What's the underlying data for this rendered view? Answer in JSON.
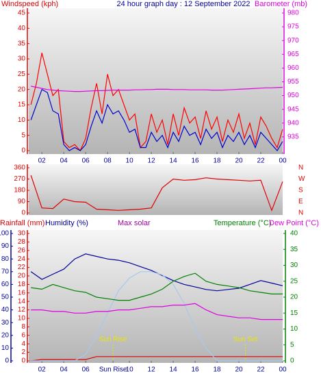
{
  "chart_data": [
    {
      "type": "line",
      "title": "24 hour graph day : 12 September 2022",
      "ylabel": "Windspeed (kph)",
      "y2label": "Barometer (mb)",
      "xlim": [
        0.8,
        24
      ],
      "xticks": [
        {
          "value": 2,
          "label": "02"
        },
        {
          "value": 4,
          "label": "04"
        },
        {
          "value": 6,
          "label": "06"
        },
        {
          "value": 8,
          "label": "08"
        },
        10,
        12,
        14,
        16,
        18,
        20,
        22,
        {
          "value": 24,
          "label": "00"
        }
      ],
      "ylim": [
        0,
        45
      ],
      "yticks": [
        0,
        5,
        10,
        15,
        20,
        25,
        30,
        35,
        40,
        45
      ],
      "y2lim": [
        930,
        980
      ],
      "y2ticks": [
        935,
        940,
        945,
        950,
        955,
        960,
        965,
        970,
        975,
        980
      ],
      "x": [
        1,
        1.5,
        2,
        2.5,
        3,
        3.5,
        4,
        4.5,
        5,
        5.5,
        6,
        6.5,
        7,
        7.5,
        8,
        8.5,
        9,
        9.5,
        10,
        10.5,
        11,
        11.5,
        12,
        12.5,
        13,
        13.5,
        14,
        14.5,
        15,
        15.5,
        16,
        16.5,
        17,
        17.5,
        18,
        18.5,
        19,
        19.5,
        20,
        20.5,
        21,
        21.5,
        22,
        22.5,
        23,
        23.5,
        24
      ],
      "series": [
        {
          "color": "#ff0000",
          "axis": "y",
          "values": [
            15,
            22,
            32,
            25,
            18,
            20,
            3,
            1,
            2,
            0,
            4,
            14,
            22,
            12,
            25,
            18,
            20,
            15,
            10,
            12,
            1,
            3,
            12,
            6,
            10,
            2,
            12,
            5,
            14,
            9,
            11,
            4,
            13,
            7,
            11,
            3,
            10,
            6,
            12,
            4,
            9,
            2,
            11,
            8,
            4,
            1,
            7
          ]
        },
        {
          "color": "#0000cc",
          "axis": "y",
          "values": [
            10,
            15,
            20,
            19,
            13,
            12,
            2,
            0,
            1,
            0,
            2,
            8,
            13,
            9,
            15,
            12,
            13,
            10,
            6,
            7,
            1,
            1,
            6,
            3,
            5,
            1,
            6,
            3,
            8,
            5,
            6,
            2,
            7,
            4,
            6,
            1,
            5,
            3,
            6,
            2,
            5,
            1,
            6,
            4,
            2,
            0,
            3
          ]
        },
        {
          "color": "#e000e0",
          "axis": "y2",
          "values": [
            953.4,
            953.0,
            952.6,
            952.2,
            952.0,
            951.8,
            951.7,
            951.6,
            951.5,
            951.5,
            951.6,
            951.7,
            951.8,
            951.8,
            951.9,
            952.0,
            952.0,
            952.0,
            952.0,
            952.1,
            952.1,
            952.2,
            952.2,
            952.3,
            952.3,
            952.3,
            952.2,
            952.2,
            952.2,
            952.1,
            952.1,
            952.1,
            952.1,
            952.0,
            952.0,
            952.0,
            952.1,
            952.2,
            952.3,
            952.4,
            952.5,
            952.6,
            952.7,
            952.8,
            952.8,
            952.9,
            953.0
          ]
        }
      ]
    },
    {
      "type": "line",
      "xlim": [
        0.8,
        24
      ],
      "ylim": [
        0,
        360
      ],
      "yticks": [
        0,
        90,
        180,
        270,
        360
      ],
      "y2lim": [
        0,
        360
      ],
      "y2ticks": [
        {
          "value": 0,
          "label": "N"
        },
        {
          "value": 90,
          "label": "E"
        },
        {
          "value": 180,
          "label": "S"
        },
        {
          "value": 270,
          "label": "W"
        },
        {
          "value": 360,
          "label": "N"
        }
      ],
      "x": [
        1,
        2,
        3,
        4,
        5,
        6,
        7,
        8,
        9,
        10,
        11,
        12,
        13,
        14,
        15,
        16,
        17,
        18,
        19,
        20,
        21,
        22,
        23,
        24
      ],
      "series": [
        {
          "color": "#e00000",
          "axis": "y",
          "values": [
            300,
            40,
            35,
            110,
            90,
            85,
            30,
            25,
            20,
            25,
            30,
            40,
            200,
            270,
            260,
            265,
            280,
            270,
            265,
            260,
            255,
            260,
            20,
            250
          ]
        }
      ]
    },
    {
      "type": "line",
      "xlim": [
        0.8,
        24
      ],
      "xticks": [
        {
          "value": 2,
          "label": "02"
        },
        {
          "value": 4,
          "label": "04"
        },
        {
          "value": 6,
          "label": "06"
        },
        {
          "value": 8.5,
          "label": "Sun Rise"
        },
        10,
        12,
        14,
        16,
        18,
        20,
        22,
        {
          "value": 24,
          "label": "00"
        }
      ],
      "ylim": [
        0,
        100
      ],
      "yticks": [
        0,
        10,
        20,
        30,
        40,
        50,
        60,
        70,
        80,
        90,
        100
      ],
      "y3lim": [
        0,
        30
      ],
      "y3ticks": [
        0,
        2,
        4,
        6,
        8,
        10,
        12,
        14,
        16,
        18,
        20,
        22,
        24,
        26,
        28,
        30
      ],
      "y2lim": [
        0,
        40
      ],
      "y2ticks": [
        0,
        5,
        10,
        15,
        20,
        25,
        30,
        35,
        40
      ],
      "annotations": [
        {
          "text": "Sun Rise",
          "x": 8.5
        },
        {
          "text": "Sun Set",
          "x": 20.6
        }
      ],
      "x": [
        1,
        2,
        3,
        4,
        5,
        6,
        7,
        8,
        9,
        10,
        11,
        12,
        13,
        14,
        15,
        16,
        17,
        18,
        19,
        20,
        21,
        22,
        23,
        24
      ],
      "series": [
        {
          "name": "Rainfall (mm)",
          "color": "#e00000",
          "axis": "y3",
          "values": [
            0,
            0.3,
            0.3,
            0.3,
            0.3,
            0.3,
            1,
            1,
            1,
            1,
            1,
            1,
            1,
            1,
            1,
            1,
            1,
            1,
            1,
            1,
            1,
            1,
            1,
            1
          ]
        },
        {
          "name": "Humidity (%)",
          "color": "#000099",
          "axis": "y",
          "values": [
            70,
            64,
            68,
            72,
            80,
            84,
            82,
            80,
            79,
            77,
            74,
            71,
            67,
            63,
            60,
            58,
            56,
            55,
            56,
            57,
            60,
            63,
            61,
            59
          ]
        },
        {
          "name": "Max solar",
          "color": "#a8c8f0",
          "axis": "y2",
          "values": [
            0,
            0,
            0,
            0,
            0,
            2,
            8,
            15,
            22,
            26,
            28,
            28,
            27,
            24,
            18,
            10,
            4,
            0,
            0,
            0,
            0,
            0,
            0,
            0
          ]
        },
        {
          "name": "Temperature (°C)",
          "color": "#008000",
          "axis": "y2",
          "values": [
            23,
            22.5,
            24,
            23,
            22,
            21.5,
            20,
            19.5,
            19,
            19,
            20,
            21,
            22.5,
            25,
            26.5,
            27.5,
            25,
            24,
            23.5,
            23,
            22,
            21.5,
            21,
            21
          ]
        },
        {
          "name": "Dew Point (°C)",
          "color": "#e000e0",
          "axis": "y2",
          "values": [
            16,
            16,
            15.5,
            15.5,
            15,
            15,
            15.5,
            15.5,
            16,
            16,
            16.5,
            17,
            17,
            17.5,
            17.5,
            18,
            16,
            14.5,
            14,
            13.5,
            13.5,
            13,
            13,
            13
          ]
        }
      ]
    }
  ]
}
